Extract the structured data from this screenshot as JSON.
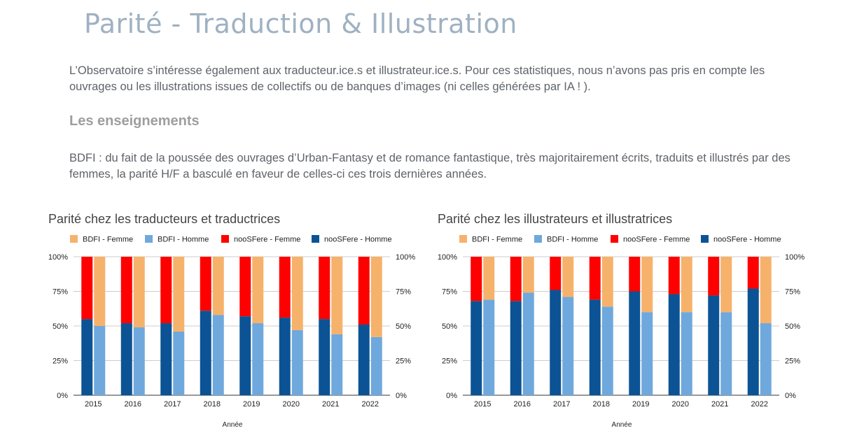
{
  "page": {
    "title": "Parité - Traduction & Illustration",
    "intro": "L’Observatoire s’intéresse également aux traducteur.ice.s et illustrateur.ice.s.  Pour ces statistiques, nous n’avons pas pris en compte les ouvrages ou les illustrations issues de collectifs ou de banques d’images (ni celles générées par IA ! ).",
    "subheading": "Les enseignements",
    "lesson": "BDFI : du fait de la poussée des ouvrages d’Urban-Fantasy et de romance fantastique, très majoritairement écrits, traduits et illustrés par des femmes, la parité H/F a basculé en faveur de celles-ci ces trois dernières années."
  },
  "chart_data": [
    {
      "type": "bar",
      "stacked": "percent",
      "title": "Parité chez les traducteurs et traductrices",
      "xlabel": "Année",
      "ylabel": "",
      "yticks": [
        "0%",
        "25%",
        "50%",
        "75%",
        "100%"
      ],
      "ylim": [
        0,
        100
      ],
      "legend_position": "top",
      "categories": [
        "2015",
        "2016",
        "2017",
        "2018",
        "2019",
        "2020",
        "2021",
        "2022"
      ],
      "series": [
        {
          "name": "BDFI - Femme",
          "color": "#f6b26b",
          "values": [
            50,
            51,
            54,
            42,
            48,
            53,
            56,
            58
          ]
        },
        {
          "name": "BDFI - Homme",
          "color": "#6fa8dc",
          "values": [
            50,
            49,
            46,
            58,
            52,
            47,
            44,
            42
          ]
        },
        {
          "name": "nooSFere - Femme",
          "color": "#ff0000",
          "values": [
            45,
            48,
            48,
            39,
            43,
            44,
            45,
            49
          ]
        },
        {
          "name": "nooSFere - Homme",
          "color": "#0b5394",
          "values": [
            55,
            52,
            52,
            61,
            57,
            56,
            55,
            51
          ]
        }
      ]
    },
    {
      "type": "bar",
      "stacked": "percent",
      "title": "Parité chez les illustrateurs et illustratrices",
      "xlabel": "Année",
      "ylabel": "",
      "yticks": [
        "0%",
        "25%",
        "50%",
        "75%",
        "100%"
      ],
      "ylim": [
        0,
        100
      ],
      "legend_position": "top",
      "categories": [
        "2015",
        "2016",
        "2017",
        "2018",
        "2019",
        "2020",
        "2021",
        "2022"
      ],
      "series": [
        {
          "name": "BDFI - Femme",
          "color": "#f6b26b",
          "values": [
            31,
            26,
            29,
            36,
            40,
            40,
            40,
            48
          ]
        },
        {
          "name": "BDFI - Homme",
          "color": "#6fa8dc",
          "values": [
            69,
            74,
            71,
            64,
            60,
            60,
            60,
            52
          ]
        },
        {
          "name": "nooSFere - Femme",
          "color": "#ff0000",
          "values": [
            32,
            32,
            24,
            31,
            25,
            27,
            28,
            23
          ]
        },
        {
          "name": "nooSFere - Homme",
          "color": "#0b5394",
          "values": [
            68,
            68,
            76,
            69,
            75,
            73,
            72,
            77
          ]
        }
      ]
    }
  ]
}
